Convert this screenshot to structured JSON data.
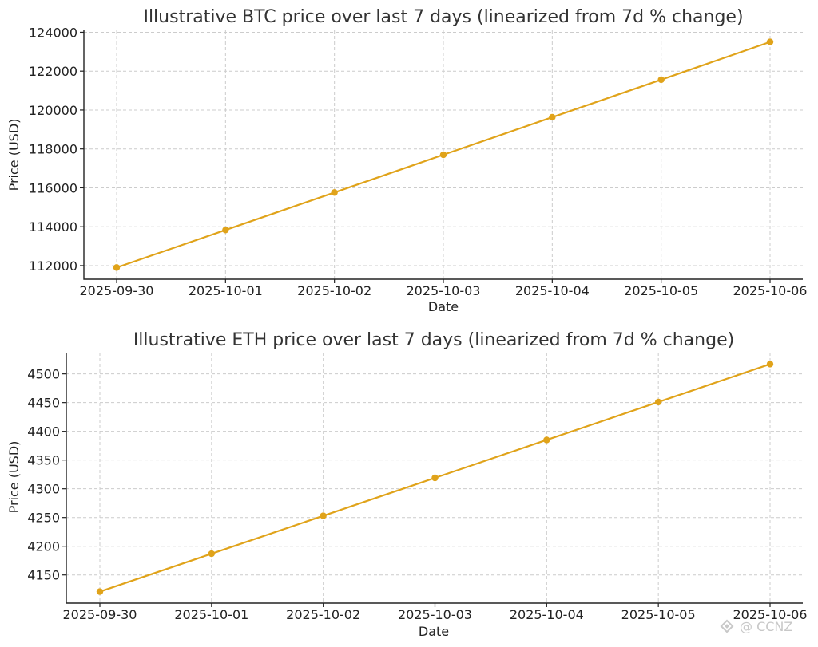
{
  "chart_data": [
    {
      "type": "line",
      "title": "Illustrative BTC price over last 7 days (linearized from 7d % change)",
      "xlabel": "Date",
      "ylabel": "Price (USD)",
      "x": [
        "2025-09-30",
        "2025-10-01",
        "2025-10-02",
        "2025-10-03",
        "2025-10-04",
        "2025-10-05",
        "2025-10-06"
      ],
      "series": [
        {
          "values": [
            111900,
            113830,
            115760,
            117700,
            119630,
            121560,
            123500
          ],
          "color": "#e0a31a"
        }
      ],
      "y_ticks": [
        112000,
        114000,
        116000,
        118000,
        120000,
        122000,
        124000
      ],
      "ylim": [
        111300,
        124100
      ],
      "grid": true
    },
    {
      "type": "line",
      "title": "Illustrative ETH price over last 7 days (linearized from 7d % change)",
      "xlabel": "Date",
      "ylabel": "Price (USD)",
      "x": [
        "2025-09-30",
        "2025-10-01",
        "2025-10-02",
        "2025-10-03",
        "2025-10-04",
        "2025-10-05",
        "2025-10-06"
      ],
      "series": [
        {
          "values": [
            4121,
            4187,
            4253,
            4319,
            4385,
            4451,
            4517
          ],
          "color": "#e0a31a"
        }
      ],
      "y_ticks": [
        4150,
        4200,
        4250,
        4300,
        4350,
        4400,
        4450,
        4500
      ],
      "ylim": [
        4101,
        4537
      ],
      "grid": true
    }
  ],
  "watermark": {
    "text": "@ CCNZ",
    "icon": "binance-logo-icon"
  }
}
